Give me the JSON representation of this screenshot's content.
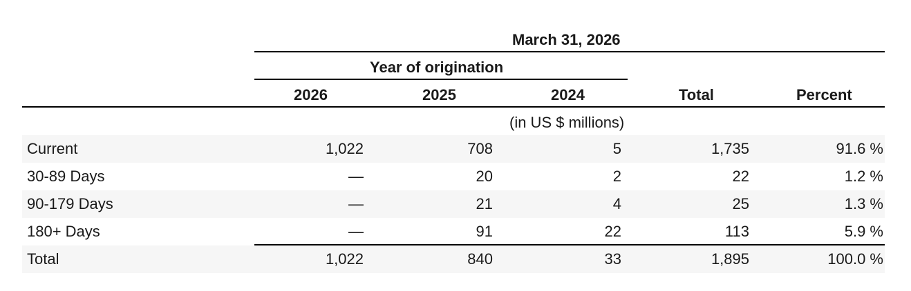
{
  "table": {
    "period_header": "March 31, 2026",
    "group_header": "Year of origination",
    "columns": [
      "2026",
      "2025",
      "2024",
      "Total",
      "Percent"
    ],
    "units": "(in US $ millions)",
    "rows": [
      {
        "label": "Current",
        "values": [
          "1,022",
          "708",
          "5",
          "1,735",
          "91.6 %"
        ]
      },
      {
        "label": "30-89 Days",
        "values": [
          "—",
          "20",
          "2",
          "22",
          "1.2 %"
        ]
      },
      {
        "label": "90-179 Days",
        "values": [
          "—",
          "21",
          "4",
          "25",
          "1.3 %"
        ]
      },
      {
        "label": "180+ Days",
        "values": [
          "—",
          "91",
          "22",
          "113",
          "5.9 %"
        ]
      },
      {
        "label": "Total",
        "values": [
          "1,022",
          "840",
          "33",
          "1,895",
          "100.0 %"
        ]
      }
    ]
  }
}
